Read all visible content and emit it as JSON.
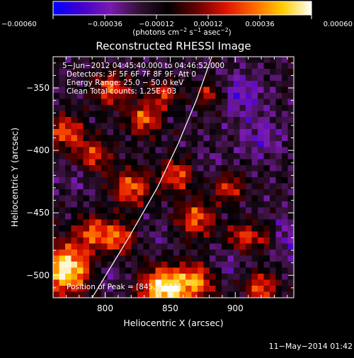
{
  "chart_data": {
    "type": "heatmap",
    "title": "Reconstructed RHESSI Image",
    "xlabel": "Heliocentric X (arcsec)",
    "ylabel": "Heliocentric Y (arcsec)",
    "xlim": [
      760,
      945
    ],
    "ylim": [
      -518,
      -325
    ],
    "xticks": [
      800,
      850,
      900
    ],
    "xtick_labels": [
      "800",
      "850",
      "900"
    ],
    "yticks": [
      -350,
      -400,
      -450,
      -500
    ],
    "ytick_labels": [
      "−350",
      "−400",
      "−450",
      "−500"
    ],
    "colorbar": {
      "range": [
        -0.0006,
        0.0006
      ],
      "ticks": [
        -0.0006,
        -0.00036,
        -0.00012,
        0.00012,
        0.00036,
        0.0006
      ],
      "tick_labels": [
        "−0.00060",
        "−0.00036",
        "−0.00012",
        "0.00012",
        "0.00036",
        "0.00060"
      ],
      "units_base": "(photons cm",
      "units_exp1": "−2",
      "units_mid1": " s",
      "units_exp2": "−1",
      "units_mid2": " asec",
      "units_exp3": "−2",
      "units_end": ")",
      "colors": [
        "#0000ff",
        "#4400cc",
        "#7a1ab0",
        "#331133",
        "#000000",
        "#660000",
        "#dd1100",
        "#ff6600",
        "#ffcc00",
        "#ffffff"
      ]
    },
    "annotations": [
      "5−Jun−2012 04:45:40.000 to 04:46:52.000",
      "Detectors: 3F 5F 6F 7F 8F 9F, Att 0",
      "Energy Range: 25.0 − 50.0 keV",
      "Clean      Total counts: 1.25E+03"
    ],
    "peak_label": "Position of Peak = [845, −511]",
    "peak_position": [
      845,
      -511
    ],
    "limb_points": [
      [
        790,
        -518
      ],
      [
        818,
        -470
      ],
      [
        840,
        -430
      ],
      [
        856,
        -395
      ],
      [
        870,
        -360
      ],
      [
        882,
        -325
      ]
    ],
    "hot_spots": [
      {
        "x": 770,
        "y": -495,
        "v": 0.00058,
        "r": 14
      },
      {
        "x": 845,
        "y": -511,
        "v": 0.0006,
        "r": 12
      },
      {
        "x": 870,
        "y": -505,
        "v": 0.00035,
        "r": 10
      },
      {
        "x": 805,
        "y": -350,
        "v": 0.00028,
        "r": 10
      },
      {
        "x": 830,
        "y": -375,
        "v": 0.0003,
        "r": 9
      },
      {
        "x": 820,
        "y": -430,
        "v": 0.00032,
        "r": 10
      },
      {
        "x": 855,
        "y": -420,
        "v": 0.00028,
        "r": 9
      },
      {
        "x": 870,
        "y": -455,
        "v": 0.0003,
        "r": 10
      },
      {
        "x": 790,
        "y": -465,
        "v": 0.00025,
        "r": 9
      },
      {
        "x": 810,
        "y": -470,
        "v": 0.0003,
        "r": 9
      },
      {
        "x": 895,
        "y": -430,
        "v": 0.00022,
        "r": 8
      },
      {
        "x": 905,
        "y": -470,
        "v": 0.00024,
        "r": 8
      },
      {
        "x": 925,
        "y": -470,
        "v": 0.00022,
        "r": 8
      },
      {
        "x": 920,
        "y": -510,
        "v": 0.00028,
        "r": 9
      },
      {
        "x": 790,
        "y": -405,
        "v": 0.00025,
        "r": 10
      },
      {
        "x": 770,
        "y": -385,
        "v": 0.0003,
        "r": 9
      },
      {
        "x": 880,
        "y": -355,
        "v": 0.00018,
        "r": 7
      },
      {
        "x": 845,
        "y": -355,
        "v": 0.0002,
        "r": 8
      }
    ],
    "cold_spots": [
      {
        "x": 905,
        "y": -355,
        "v": -0.0004,
        "r": 12
      },
      {
        "x": 920,
        "y": -390,
        "v": -0.00035,
        "r": 12
      },
      {
        "x": 935,
        "y": -470,
        "v": -0.00045,
        "r": 11
      },
      {
        "x": 895,
        "y": -490,
        "v": -0.0003,
        "r": 10
      },
      {
        "x": 780,
        "y": -420,
        "v": -0.0003,
        "r": 10
      },
      {
        "x": 800,
        "y": -500,
        "v": -0.0003,
        "r": 10
      },
      {
        "x": 840,
        "y": -470,
        "v": -0.00025,
        "r": 9
      },
      {
        "x": 880,
        "y": -410,
        "v": -0.00025,
        "r": 9
      },
      {
        "x": 810,
        "y": -335,
        "v": -0.00022,
        "r": 9
      }
    ]
  },
  "footer": {
    "timestamp": "11−May−2014 01:42"
  }
}
